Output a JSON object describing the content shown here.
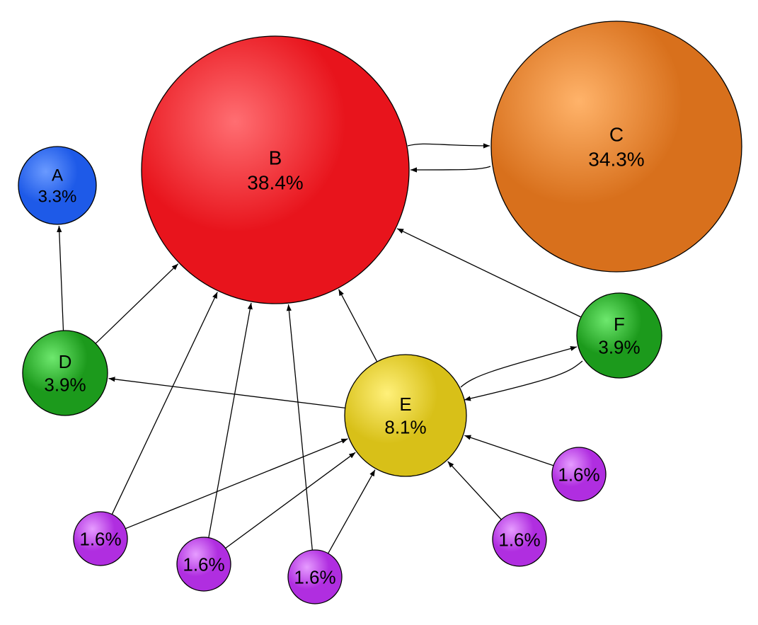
{
  "diagram": {
    "nodes": [
      {
        "id": "A",
        "label": "A",
        "value": "3.3%",
        "color": "#1e5ae8",
        "highlight": "#6a9aff",
        "border": "#0a2a90"
      },
      {
        "id": "B",
        "label": "B",
        "value": "38.4%",
        "color": "#e8141c",
        "highlight": "#ff6e72",
        "border": "#7a0000"
      },
      {
        "id": "C",
        "label": "C",
        "value": "34.3%",
        "color": "#d8701c",
        "highlight": "#ffb36a",
        "border": "#7a3a00"
      },
      {
        "id": "D",
        "label": "D",
        "value": "3.9%",
        "color": "#1c9a1c",
        "highlight": "#6ee86e",
        "border": "#0a4a0a"
      },
      {
        "id": "E",
        "label": "E",
        "value": "8.1%",
        "color": "#d8c018",
        "highlight": "#fff07a",
        "border": "#6a5a00"
      },
      {
        "id": "F",
        "label": "F",
        "value": "3.9%",
        "color": "#1c9a1c",
        "highlight": "#6ee86e",
        "border": "#0a4a0a"
      },
      {
        "id": "P1",
        "label": "",
        "value": "1.6%",
        "color": "#b02ee0",
        "highlight": "#e69cff",
        "border": "#4a0a6a"
      },
      {
        "id": "P2",
        "label": "",
        "value": "1.6%",
        "color": "#b02ee0",
        "highlight": "#e69cff",
        "border": "#4a0a6a"
      },
      {
        "id": "P3",
        "label": "",
        "value": "1.6%",
        "color": "#b02ee0",
        "highlight": "#e69cff",
        "border": "#4a0a6a"
      },
      {
        "id": "P4",
        "label": "",
        "value": "1.6%",
        "color": "#b02ee0",
        "highlight": "#e69cff",
        "border": "#4a0a6a"
      },
      {
        "id": "P5",
        "label": "",
        "value": "1.6%",
        "color": "#b02ee0",
        "highlight": "#e69cff",
        "border": "#4a0a6a"
      }
    ],
    "edges": [
      {
        "from": "B",
        "to": "C"
      },
      {
        "from": "C",
        "to": "B"
      },
      {
        "from": "D",
        "to": "A"
      },
      {
        "from": "D",
        "to": "B"
      },
      {
        "from": "E",
        "to": "B"
      },
      {
        "from": "E",
        "to": "D"
      },
      {
        "from": "E",
        "to": "F"
      },
      {
        "from": "F",
        "to": "E"
      },
      {
        "from": "F",
        "to": "B"
      },
      {
        "from": "P1",
        "to": "B"
      },
      {
        "from": "P1",
        "to": "E"
      },
      {
        "from": "P2",
        "to": "B"
      },
      {
        "from": "P2",
        "to": "E"
      },
      {
        "from": "P3",
        "to": "B"
      },
      {
        "from": "P3",
        "to": "E"
      },
      {
        "from": "P4",
        "to": "E"
      },
      {
        "from": "P5",
        "to": "E"
      }
    ]
  }
}
